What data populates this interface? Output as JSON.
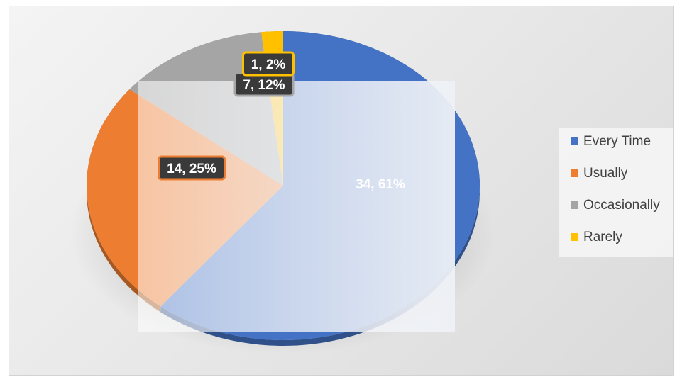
{
  "chart_data": {
    "type": "pie",
    "title": "",
    "categories": [
      "Every Time",
      "Usually",
      "Occasionally",
      "Rarely"
    ],
    "values": [
      34,
      14,
      7,
      1
    ],
    "percent_labels": [
      "61%",
      "25%",
      "12%",
      "2%"
    ],
    "data_labels": [
      "34, 61%",
      "14, 25%",
      "7, 12%",
      "1, 2%"
    ],
    "colors": [
      "#4472c4",
      "#ed7d31",
      "#a5a5a5",
      "#ffc000"
    ],
    "legend": {
      "position": "right",
      "entries": [
        "Every Time",
        "Usually",
        "Occasionally",
        "Rarely"
      ]
    },
    "style": "3d-pie"
  }
}
